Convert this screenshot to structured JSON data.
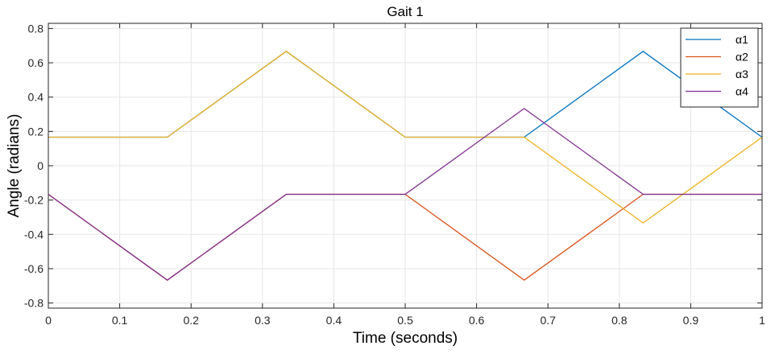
{
  "chart_data": {
    "type": "line",
    "title": "Gait 1",
    "xlabel": "Time (seconds)",
    "ylabel": "Angle (radians)",
    "xlim": [
      0,
      1
    ],
    "ylim": [
      -0.83,
      0.83
    ],
    "x_ticks": [
      "0",
      "0.1",
      "0.2",
      "0.3",
      "0.4",
      "0.5",
      "0.6",
      "0.7",
      "0.8",
      "0.9",
      "1"
    ],
    "y_ticks": [
      "-0.8",
      "-0.6",
      "-0.4",
      "-0.2",
      "0",
      "0.2",
      "0.4",
      "0.6",
      "0.8"
    ],
    "grid": true,
    "legend_position": "top-right",
    "series": [
      {
        "name": "α1",
        "color": "#0072BD",
        "x": [
          0,
          0.1667,
          0.3333,
          0.5,
          0.6667,
          0.8333,
          1
        ],
        "y": [
          0.1667,
          0.1667,
          0.6667,
          0.1667,
          0.1667,
          0.6667,
          0.1667
        ]
      },
      {
        "name": "α2",
        "color": "#D95319",
        "x": [
          0,
          0.1667,
          0.3333,
          0.5,
          0.6667,
          0.8333,
          1
        ],
        "y": [
          -0.1667,
          -0.6667,
          -0.1667,
          -0.1667,
          -0.6667,
          -0.1667,
          -0.1667
        ]
      },
      {
        "name": "α3",
        "color": "#EDB120",
        "x": [
          0,
          0.1667,
          0.3333,
          0.5,
          0.6667,
          0.8333,
          1
        ],
        "y": [
          0.1667,
          0.1667,
          0.6667,
          0.1667,
          0.1667,
          -0.3333,
          0.1667
        ]
      },
      {
        "name": "α4",
        "color": "#7E2F8E",
        "x": [
          0,
          0.1667,
          0.3333,
          0.5,
          0.6667,
          0.8333,
          1
        ],
        "y": [
          -0.1667,
          -0.6667,
          -0.1667,
          -0.1667,
          0.3333,
          -0.1667,
          -0.1667
        ]
      }
    ]
  }
}
